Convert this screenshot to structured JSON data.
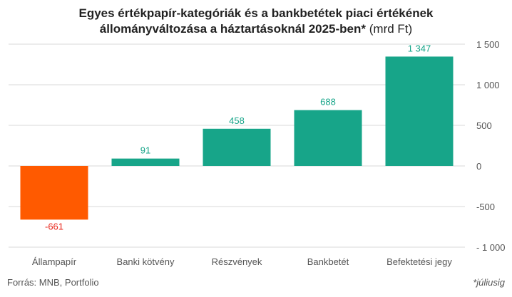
{
  "title": {
    "line1": "Egyes értékpapír-kategóriák és a bankbetétek piaci értékének",
    "line2_bold": "állományváltozása a háztartásoknál 2025-ben*",
    "line2_unit": " (mrd Ft)"
  },
  "footer": {
    "source": "Forrás: MNB, Portfolio",
    "note": "*júliusig"
  },
  "colors": {
    "positive": "#17a589",
    "negative": "#ff5a00",
    "negative_label": "#e8261b",
    "positive_label": "#17a589",
    "grid": "#d9d9d9"
  },
  "chart_data": {
    "type": "bar",
    "categories": [
      "Állampapír",
      "Banki kötvény",
      "Részvények",
      "Bankbetét",
      "Befektetési jegy"
    ],
    "values": [
      -661,
      91,
      458,
      688,
      1347
    ],
    "value_labels": [
      "-661",
      "91",
      "458",
      "688",
      "1 347"
    ],
    "ylim": [
      -1000,
      1500
    ],
    "yticks": [
      1500,
      1000,
      500,
      0,
      -500,
      -1000
    ],
    "ytick_labels": [
      "1 500",
      "1 000",
      "500",
      "0",
      "-500",
      "- 1 000"
    ],
    "y_axis_position": "right",
    "grid": true
  }
}
